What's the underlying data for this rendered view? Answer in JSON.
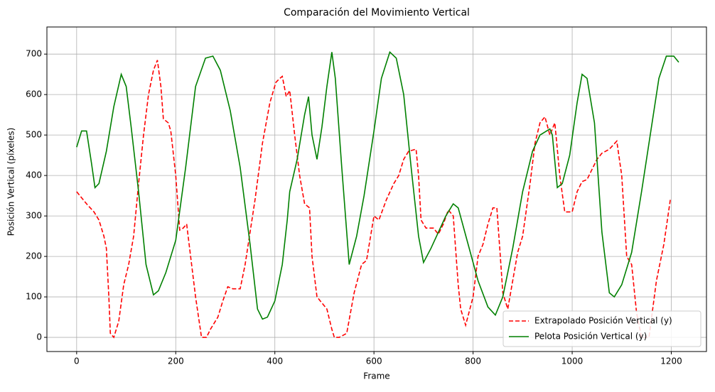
{
  "chart_data": {
    "type": "line",
    "title": "Comparación del Movimiento Vertical",
    "x_label": "Frame",
    "y_label": "Posición Vertical (píxeles)",
    "xlim": [
      -60,
      1271
    ],
    "ylim": [
      -35,
      767
    ],
    "xticks": [
      0,
      200,
      400,
      600,
      800,
      1000,
      1200
    ],
    "yticks": [
      0,
      100,
      200,
      300,
      400,
      500,
      600,
      700
    ],
    "grid": true,
    "legend": "lower right",
    "series": [
      {
        "name": "Extrapolado Posición Vertical (y)",
        "color": "#ff0000",
        "style": "dashed",
        "x": [
          0,
          10,
          20,
          35,
          45,
          55,
          60,
          65,
          68,
          75,
          85,
          95,
          105,
          115,
          125,
          135,
          145,
          155,
          163,
          170,
          175,
          185,
          190,
          200,
          208,
          215,
          222,
          230,
          240,
          252,
          262,
          270,
          285,
          295,
          305,
          315,
          330,
          340,
          350,
          360,
          375,
          390,
          402,
          410,
          415,
          423,
          430,
          440,
          450,
          460,
          470,
          475,
          485,
          495,
          505,
          515,
          520,
          530,
          545,
          560,
          575,
          585,
          600,
          610,
          625,
          640,
          650,
          660,
          670,
          685,
          690,
          695,
          705,
          720,
          730,
          740,
          750,
          760,
          770,
          775,
          785,
          800,
          810,
          820,
          830,
          840,
          848,
          855,
          860,
          870,
          880,
          890,
          900,
          915,
          925,
          935,
          945,
          955,
          965,
          975,
          985,
          1000,
          1010,
          1020,
          1030,
          1050,
          1060,
          1075,
          1090,
          1100,
          1110,
          1120,
          1130,
          1140,
          1155,
          1170,
          1185,
          1198
        ],
        "values": [
          360,
          345,
          330,
          310,
          290,
          250,
          220,
          100,
          10,
          0,
          40,
          130,
          180,
          250,
          380,
          500,
          600,
          660,
          685,
          620,
          540,
          530,
          510,
          400,
          265,
          270,
          280,
          200,
          100,
          0,
          0,
          20,
          50,
          90,
          125,
          120,
          120,
          180,
          260,
          340,
          480,
          580,
          630,
          640,
          645,
          595,
          610,
          500,
          400,
          330,
          320,
          200,
          100,
          85,
          70,
          20,
          0,
          0,
          10,
          110,
          180,
          190,
          300,
          290,
          340,
          380,
          400,
          440,
          460,
          465,
          400,
          290,
          270,
          270,
          255,
          280,
          315,
          300,
          130,
          70,
          30,
          100,
          200,
          230,
          280,
          320,
          320,
          200,
          110,
          70,
          140,
          210,
          250,
          380,
          480,
          530,
          545,
          500,
          530,
          400,
          310,
          310,
          360,
          385,
          390,
          440,
          455,
          465,
          485,
          400,
          200,
          180,
          60,
          0,
          0,
          140,
          230,
          340
        ]
      },
      {
        "name": "Pelota Posición Vertical (y)",
        "color": "#008000",
        "style": "solid",
        "x": [
          0,
          10,
          20,
          30,
          37,
          45,
          60,
          75,
          90,
          100,
          110,
          125,
          140,
          155,
          165,
          180,
          200,
          220,
          240,
          260,
          275,
          290,
          310,
          330,
          350,
          365,
          375,
          385,
          400,
          415,
          425,
          430,
          445,
          460,
          468,
          475,
          485,
          495,
          505,
          515,
          522,
          535,
          550,
          565,
          580,
          600,
          615,
          632,
          645,
          660,
          675,
          690,
          700,
          715,
          730,
          745,
          760,
          770,
          790,
          810,
          830,
          845,
          860,
          880,
          900,
          920,
          935,
          955,
          960,
          970,
          980,
          995,
          1010,
          1020,
          1030,
          1045,
          1060,
          1075,
          1085,
          1100,
          1120,
          1140,
          1160,
          1175,
          1190,
          1205,
          1215
        ],
        "values": [
          470,
          510,
          510,
          430,
          370,
          380,
          460,
          570,
          650,
          620,
          520,
          360,
          180,
          105,
          115,
          160,
          240,
          420,
          620,
          690,
          695,
          660,
          560,
          420,
          230,
          70,
          45,
          50,
          90,
          180,
          290,
          360,
          440,
          550,
          595,
          500,
          440,
          520,
          620,
          705,
          640,
          420,
          180,
          250,
          350,
          510,
          640,
          705,
          690,
          600,
          420,
          250,
          185,
          220,
          260,
          300,
          330,
          320,
          230,
          140,
          75,
          55,
          100,
          220,
          360,
          460,
          500,
          515,
          500,
          370,
          380,
          450,
          580,
          650,
          640,
          530,
          260,
          110,
          100,
          130,
          210,
          360,
          520,
          640,
          695,
          695,
          680
        ]
      }
    ]
  }
}
